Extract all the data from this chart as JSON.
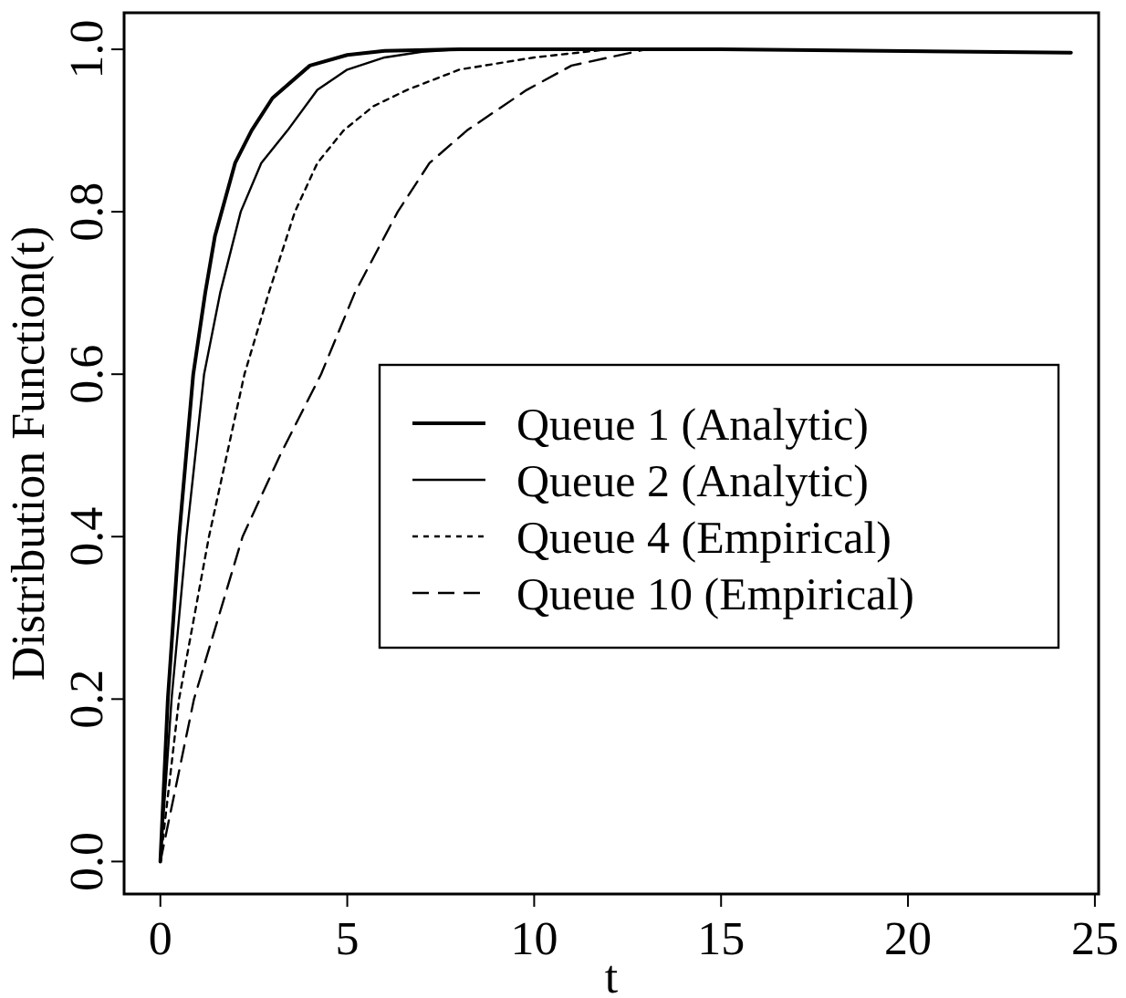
{
  "chart_data": {
    "type": "line",
    "xlabel": "t",
    "ylabel": "Distribution Function(t)",
    "xlim": [
      -0.97,
      25.1
    ],
    "ylim": [
      -0.04,
      1.045
    ],
    "xticks": [
      0,
      5,
      10,
      15,
      20,
      25
    ],
    "yticks": [
      {
        "value": 0,
        "label": "0.0"
      },
      {
        "value": 0.2,
        "label": "0.2"
      },
      {
        "value": 0.4,
        "label": "0.4"
      },
      {
        "value": 0.6,
        "label": "0.6"
      },
      {
        "value": 0.8,
        "label": "0.8"
      },
      {
        "value": 1,
        "label": "1.0"
      }
    ],
    "grid": false,
    "legend": "right",
    "series": [
      {
        "name": "Queue 1 (Analytic)",
        "color": "#000000",
        "line_style": "solid",
        "x": [
          0,
          0.2,
          0.5,
          0.88,
          1.2,
          1.46,
          2,
          2.44,
          3,
          4,
          5,
          6,
          8,
          15,
          24.36
        ],
        "values": [
          0,
          0.2,
          0.4,
          0.6,
          0.7,
          0.77,
          0.86,
          0.9,
          0.94,
          0.98,
          0.993,
          0.998,
          1,
          1,
          0.996
        ]
      },
      {
        "name": "Queue 2 (Analytic)",
        "color": "#000000",
        "line_style": "solid",
        "x": [
          0,
          0.3,
          0.7,
          1.17,
          1.6,
          2.15,
          2.7,
          3.4,
          4.2,
          5,
          6,
          7,
          8,
          15
        ],
        "values": [
          0,
          0.2,
          0.4,
          0.6,
          0.7,
          0.8,
          0.86,
          0.9,
          0.95,
          0.975,
          0.99,
          0.997,
          1,
          1
        ]
      },
      {
        "name": "Queue 4 (Empirical)",
        "color": "#000000",
        "line_style": "dotted",
        "x": [
          0,
          0.5,
          1.3,
          2.25,
          2.9,
          3.6,
          4.2,
          4.9,
          5.7,
          6.6,
          8,
          10,
          12
        ],
        "values": [
          0,
          0.2,
          0.4,
          0.6,
          0.7,
          0.8,
          0.86,
          0.9,
          0.93,
          0.95,
          0.975,
          0.99,
          1
        ]
      },
      {
        "name": "Queue 10 (Empirical)",
        "color": "#000000",
        "line_style": "dashed",
        "x": [
          0,
          0.9,
          2.2,
          3.2,
          4.3,
          5.2,
          6.35,
          7.2,
          8.2,
          9.8,
          11,
          13
        ],
        "values": [
          0,
          0.2,
          0.4,
          0.5,
          0.6,
          0.7,
          0.8,
          0.86,
          0.9,
          0.95,
          0.98,
          1
        ]
      }
    ]
  }
}
